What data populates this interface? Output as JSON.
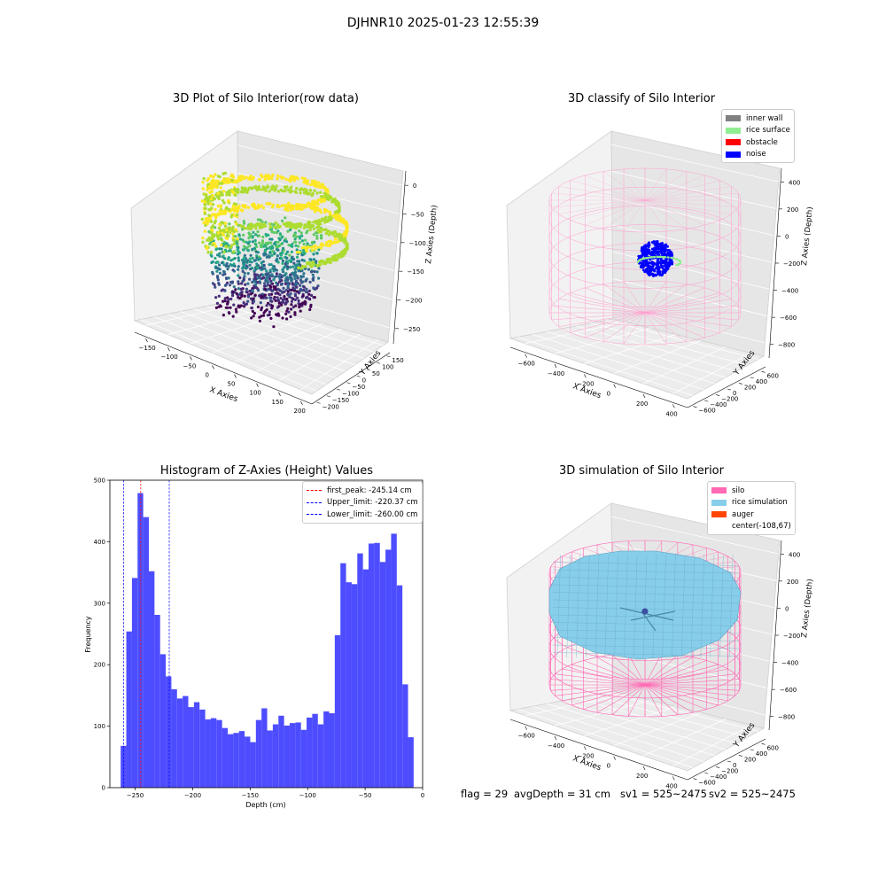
{
  "figure_title": "DJHNR10 2025-01-23 12:55:39",
  "footer": {
    "flag": "flag = 29",
    "avg_depth": "avgDepth = 31 cm",
    "sv1": "sv1 = 525~2475",
    "sv2": "sv2 = 525~2475"
  },
  "colors": {
    "hist_bar": "#4d4dff",
    "first_peak": "#ff0000",
    "limit_lines": "#0000ff",
    "inner_wall": "#808080",
    "rice_surface": "#90ee90",
    "obstacle": "#ff0000",
    "noise": "#0000ff",
    "silo": "#ff69b4",
    "rice_simulation": "#87ceeb",
    "auger": "#ff4500",
    "pane": "#f2f2f2"
  },
  "chart_data": [
    {
      "type": "scatter",
      "title": "3D Plot of Silo Interior(row data)",
      "xlabel": "X Axies",
      "ylabel": "Y Axies",
      "zlabel": "Z Axies (Depth)",
      "x_ticks": [
        "−150",
        "−100",
        "−50",
        "0",
        "50",
        "100",
        "150",
        "200"
      ],
      "y_ticks": [
        "−200",
        "−150",
        "−100",
        "−50",
        "0",
        "50",
        "100",
        "150"
      ],
      "z_ticks": [
        "0",
        "−50",
        "−100",
        "−150",
        "−200",
        "−250"
      ]
    },
    {
      "type": "scatter",
      "title": "3D classify of Silo Interior",
      "xlabel": "X Axies",
      "ylabel": "Y Axies",
      "zlabel": "Z Axies (Depth)",
      "x_ticks": [
        "−600",
        "−400",
        "−200",
        "0",
        "200",
        "400"
      ],
      "y_ticks": [
        "−600",
        "−400",
        "−200",
        "0",
        "200",
        "400",
        "600"
      ],
      "z_ticks": [
        "400",
        "200",
        "0",
        "−200",
        "−400",
        "−600",
        "−800"
      ],
      "legend": [
        "inner wall",
        "rice surface",
        "obstacle",
        "noise"
      ]
    },
    {
      "type": "bar",
      "title": "Histogram of Z-Axies (Height) Values",
      "xlabel": "Depth (cm)",
      "ylabel": "Frequency",
      "xlim": [
        -272,
        0
      ],
      "ylim": [
        0,
        500
      ],
      "x_ticks": [
        -250,
        -200,
        -150,
        -100,
        -50,
        0
      ],
      "x_tick_labels": [
        "−250",
        "−200",
        "−150",
        "−100",
        "−50",
        "0"
      ],
      "y_ticks": [
        0,
        100,
        200,
        300,
        400,
        500
      ],
      "bin_start": -262.6,
      "bin_width": 4.9,
      "values": [
        68,
        254,
        341,
        479,
        440,
        352,
        281,
        217,
        181,
        160,
        145,
        149,
        131,
        139,
        127,
        111,
        113,
        110,
        97,
        87,
        89,
        92,
        83,
        74,
        110,
        129,
        93,
        103,
        117,
        101,
        105,
        106,
        94,
        114,
        120,
        103,
        124,
        121,
        248,
        365,
        334,
        331,
        381,
        355,
        397,
        398,
        367,
        387,
        413,
        329,
        168,
        82
      ],
      "lines": [
        {
          "name": "first_peak: -245.14 cm",
          "x": -245.14
        },
        {
          "name": "Upper_limit: -220.37 cm",
          "x": -220.37
        },
        {
          "name": "Lower_limit: -260.00 cm",
          "x": -260.0
        }
      ]
    },
    {
      "type": "scatter",
      "title": "3D simulation of Silo Interior",
      "xlabel": "X Axies",
      "ylabel": "Y Axies",
      "zlabel": "Z Axies (Depth)",
      "x_ticks": [
        "−600",
        "−400",
        "−200",
        "0",
        "200",
        "400"
      ],
      "y_ticks": [
        "−600",
        "−400",
        "−200",
        "0",
        "200",
        "400",
        "600"
      ],
      "z_ticks": [
        "400",
        "200",
        "0",
        "−200",
        "−400",
        "−600",
        "−800"
      ],
      "legend": [
        "silo",
        "rice simulation",
        "auger",
        "center(-108,67)"
      ]
    }
  ]
}
